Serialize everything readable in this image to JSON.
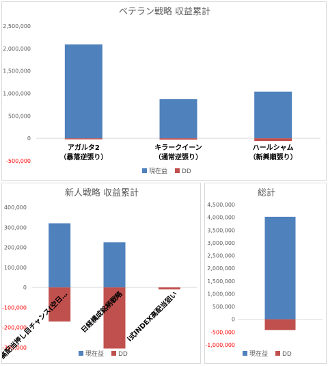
{
  "chart_data": [
    {
      "type": "bar",
      "title": "ベテラン戦略 収益累計",
      "categories": [
        [
          "アガルタ2",
          "（暴落逆張り）"
        ],
        [
          "キラークイーン",
          "（通常逆張り）"
        ],
        [
          "ハールシャム",
          "（新興順張り）"
        ]
      ],
      "series": [
        {
          "name": "現在益",
          "values": [
            2090000,
            870000,
            1040000
          ]
        },
        {
          "name": "DD",
          "values": [
            -5000,
            -30000,
            -60000
          ]
        }
      ],
      "ylim": [
        -500000,
        2500000
      ],
      "ticks": [
        2500000,
        2000000,
        1500000,
        1000000,
        500000,
        0,
        -500000
      ],
      "tick_labels": [
        "2,500,000",
        "2,000,000",
        "1,500,000",
        "1,000,000",
        "500,000",
        "0",
        "-500,000"
      ],
      "grid": false,
      "legend": "bottom"
    },
    {
      "type": "bar",
      "title": "新人戦略 収益累計",
      "categories": [
        "高配当押し目チャンス(空日…",
        "日経構成銘柄戦略",
        "i式INDEX高配当狙い"
      ],
      "series": [
        {
          "name": "現在益",
          "values": [
            320000,
            225000,
            0
          ]
        },
        {
          "name": "DD",
          "values": [
            -170000,
            -305000,
            -10000
          ]
        }
      ],
      "ylim": [
        -300000,
        400000
      ],
      "ticks": [
        400000,
        300000,
        200000,
        100000,
        0,
        -100000,
        -200000,
        -300000
      ],
      "tick_labels": [
        "400,000",
        "300,000",
        "200,000",
        "100,000",
        "0",
        "-100,000",
        "-200,000",
        "-300,000"
      ],
      "grid": false,
      "legend": "bottom"
    },
    {
      "type": "bar",
      "title": "総計",
      "categories": [
        ""
      ],
      "series": [
        {
          "name": "現在益",
          "values": [
            4020000
          ]
        },
        {
          "name": "DD",
          "values": [
            -420000
          ]
        }
      ],
      "ylim": [
        -1000000,
        4500000
      ],
      "ticks": [
        4500000,
        4000000,
        3500000,
        3000000,
        2500000,
        2000000,
        1500000,
        1000000,
        500000,
        0,
        -500000,
        -1000000
      ],
      "tick_labels": [
        "4,500,000",
        "4,000,000",
        "3,500,000",
        "3,000,000",
        "2,500,000",
        "2,000,000",
        "1,500,000",
        "1,000,000",
        "500,000",
        "0",
        "-500,000",
        "-1,000,000"
      ],
      "grid": false,
      "legend": "bottom"
    }
  ],
  "colors": {
    "profit": "#4f81bd",
    "dd": "#c0504d",
    "axis": "#d9d9d9",
    "tick": "#595959",
    "neg_tick": "#ff0000"
  }
}
